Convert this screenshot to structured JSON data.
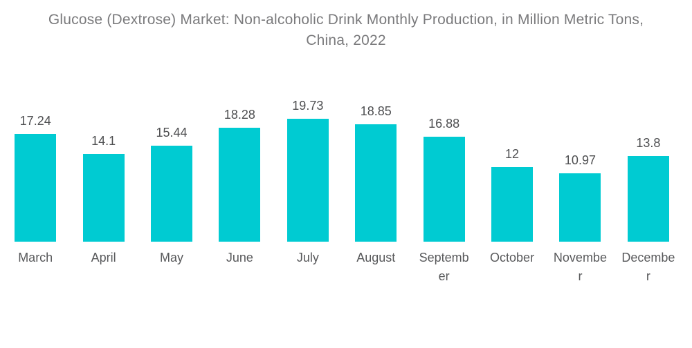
{
  "chart_data": {
    "type": "bar",
    "title": "Glucose (Dextrose) Market: Non-alcoholic Drink Monthly Production, in Million Metric Tons, China, 2022",
    "title_line1": "Glucose (Dextrose) Market: Non-alcoholic Drink Monthly Production, in Million Metric Tons,",
    "title_line2": "China, 2022",
    "categories": [
      "March",
      "April",
      "May",
      "June",
      "July",
      "August",
      "September",
      "October",
      "November",
      "December"
    ],
    "values": [
      17.24,
      14.1,
      15.44,
      18.28,
      19.73,
      18.85,
      16.88,
      12,
      10.97,
      13.8
    ],
    "value_labels": [
      "17.24",
      "14.1",
      "15.44",
      "18.28",
      "19.73",
      "18.85",
      "16.88",
      "12",
      "10.97",
      "13.8"
    ],
    "xlabel": "",
    "ylabel": "",
    "ylim": [
      0,
      20
    ],
    "grid": false,
    "legend": false,
    "data_labels_position": "above-bars",
    "colors": {
      "bar": "#00CBD2",
      "title": "#7A7A7C",
      "value_label": "#4E4F51",
      "category_label": "#58595B",
      "background": "#FFFFFF"
    }
  }
}
